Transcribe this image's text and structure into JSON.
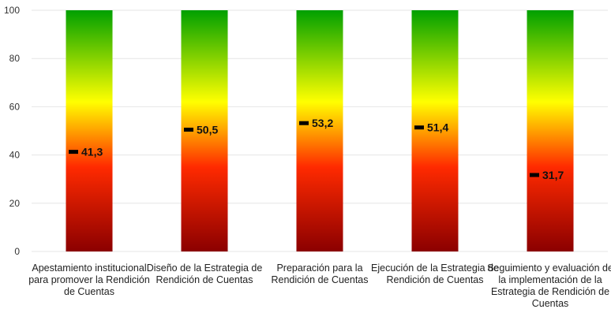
{
  "chart_data": {
    "type": "bar",
    "title": "",
    "xlabel": "",
    "ylabel": "",
    "ylim": [
      0,
      100
    ],
    "yticks": [
      0,
      20,
      40,
      60,
      80,
      100
    ],
    "grid": true,
    "legend": "none",
    "fill_colors": [
      "#8b0000",
      "#ff2a00",
      "#ffff00",
      "#00a000"
    ],
    "marker_color": "#000000",
    "categories": [
      [
        "Apestamiento institucional",
        "para promover la Rendición",
        "de Cuentas"
      ],
      [
        "Diseño de la Estrategia de",
        "Rendición de Cuentas"
      ],
      [
        "Preparación para la",
        "Rendición de Cuentas"
      ],
      [
        "Ejecución de la Estrategia de",
        "Rendición de Cuentas"
      ],
      [
        "Seguimiento y evaluación de",
        "la implementación de la",
        "Estrategia de Rendición de",
        "Cuentas"
      ]
    ],
    "values": [
      41.3,
      50.5,
      53.2,
      51.4,
      31.7
    ],
    "value_labels": [
      "41,3",
      "50,5",
      "53,2",
      "51,4",
      "31,7"
    ]
  }
}
